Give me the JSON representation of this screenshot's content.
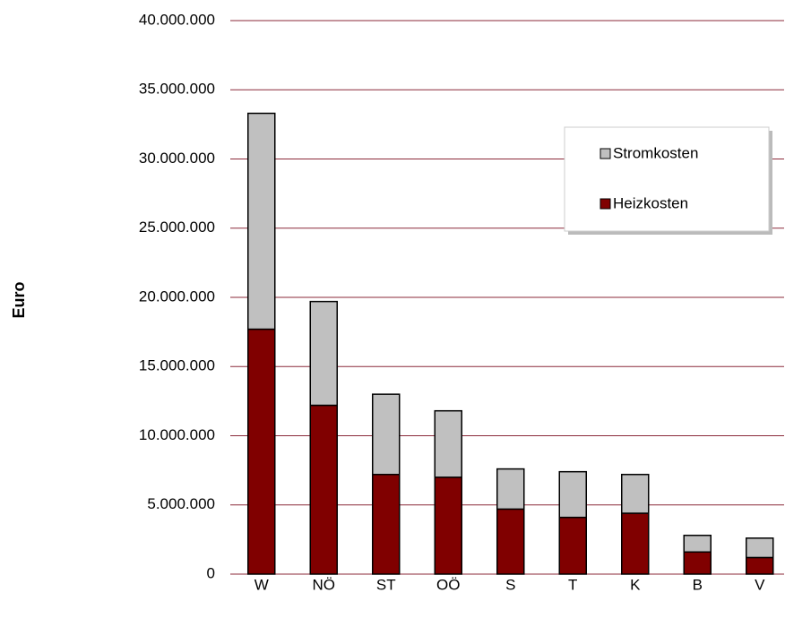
{
  "chart_data": {
    "type": "stacked_bar",
    "y_axis_label": "Euro",
    "categories": [
      "W",
      "NÖ",
      "ST",
      "OÖ",
      "S",
      "T",
      "K",
      "B",
      "V"
    ],
    "series": [
      {
        "name": "Heizkosten",
        "color": "#800000",
        "values": [
          17700000,
          12200000,
          7200000,
          7000000,
          4700000,
          4100000,
          4400000,
          1600000,
          1200000
        ]
      },
      {
        "name": "Stromkosten",
        "color": "#c0c0c0",
        "values": [
          15600000,
          7500000,
          5800000,
          4800000,
          2900000,
          3300000,
          2800000,
          1200000,
          1400000
        ]
      }
    ],
    "ylim": [
      0,
      40000000
    ],
    "yticks": [
      0,
      {
        "value": 5000000,
        "label": "5.000.000"
      },
      {
        "value": 10000000,
        "label": "10.000.000"
      },
      {
        "value": 15000000,
        "label": "15.000.000"
      },
      {
        "value": 20000000,
        "label": "20.000.000"
      },
      {
        "value": 25000000,
        "label": "25.000.000"
      },
      {
        "value": 30000000,
        "label": "30.000.000"
      },
      {
        "value": 35000000,
        "label": "35.000.000"
      },
      {
        "value": 40000000,
        "label": "40.000.000"
      }
    ],
    "grid": true,
    "grid_color": "#8b2a3a",
    "legend": "upper right"
  }
}
